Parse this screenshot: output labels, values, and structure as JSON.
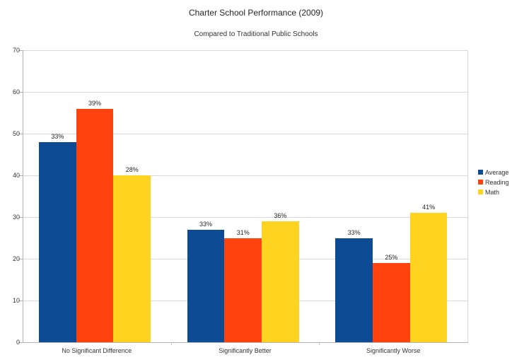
{
  "title": "Charter School Performance (2009)",
  "subtitle": "Compared to Traditional Public Schools",
  "chart_data": {
    "type": "bar",
    "title": "Charter School Performance (2009)",
    "subtitle": "Compared to Traditional Public Schools",
    "categories": [
      "No Significant Difference",
      "Significantly Better",
      "Significantly Worse"
    ],
    "series": [
      {
        "name": "Average",
        "color": "#0d4b94",
        "values": [
          48,
          27,
          25
        ],
        "labels": [
          "33%",
          "33%",
          "33%"
        ]
      },
      {
        "name": "Reading",
        "color": "#ff420e",
        "values": [
          56,
          25,
          19
        ],
        "labels": [
          "39%",
          "31%",
          "25%"
        ]
      },
      {
        "name": "Math",
        "color": "#ffd320",
        "values": [
          40,
          29,
          31
        ],
        "labels": [
          "28%",
          "36%",
          "41%"
        ]
      }
    ],
    "xlabel": "",
    "ylabel": "",
    "ylim": [
      0,
      70
    ],
    "yticks": [
      0,
      10,
      20,
      30,
      40,
      50,
      60,
      70
    ],
    "grid": true,
    "legend_position": "right"
  }
}
